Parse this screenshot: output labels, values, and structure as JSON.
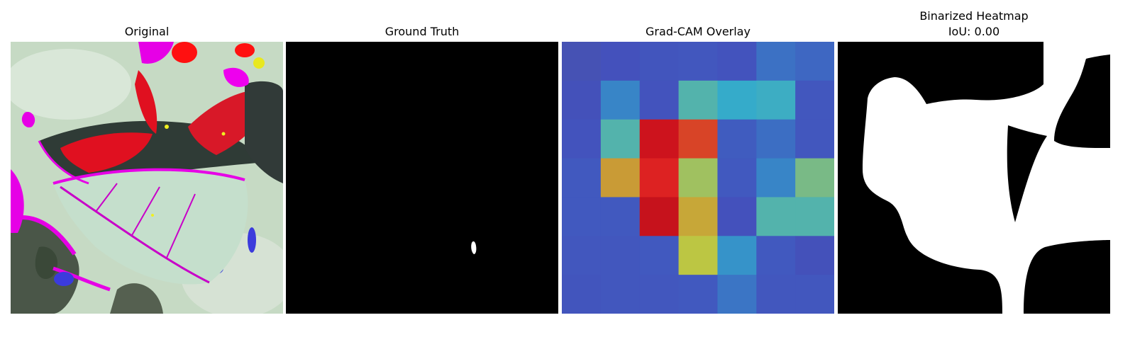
{
  "panels": [
    {
      "title": "Original"
    },
    {
      "title": "Ground Truth"
    },
    {
      "title": "Grad-CAM Overlay"
    },
    {
      "title": "Binarized Heatmap",
      "subtitle": "IoU: 0.00"
    }
  ],
  "gradcam": {
    "grid": [
      [
        0.1,
        0.13,
        0.15,
        0.16,
        0.14,
        0.25,
        0.22
      ],
      [
        0.12,
        0.3,
        0.14,
        0.45,
        0.38,
        0.4,
        0.16
      ],
      [
        0.14,
        0.45,
        0.9,
        0.82,
        0.18,
        0.24,
        0.16
      ],
      [
        0.17,
        0.7,
        0.86,
        0.58,
        0.17,
        0.3,
        0.52
      ],
      [
        0.17,
        0.17,
        0.91,
        0.68,
        0.13,
        0.45,
        0.45
      ],
      [
        0.16,
        0.16,
        0.17,
        0.62,
        0.33,
        0.17,
        0.12
      ],
      [
        0.15,
        0.16,
        0.16,
        0.17,
        0.26,
        0.16,
        0.16
      ]
    ]
  },
  "colors": {
    "background": "#ffffff",
    "mask_bg": "#000000",
    "mask_fg": "#ffffff"
  }
}
